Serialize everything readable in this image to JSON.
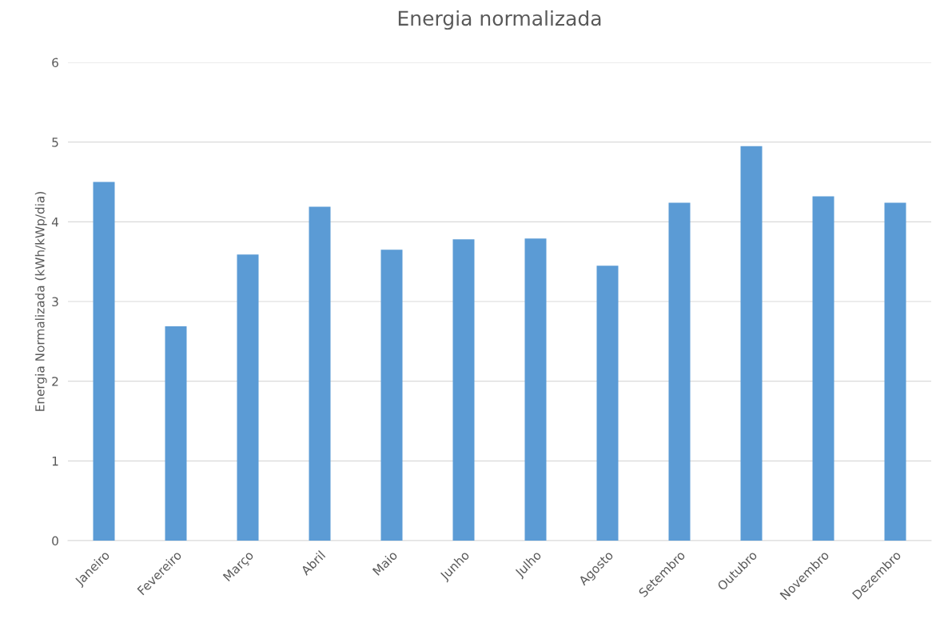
{
  "chart_data": {
    "type": "bar",
    "title": "Energia normalizada",
    "ylabel": "Energia Normalizada (kWh/kWp/dia)",
    "categories": [
      "Janeiro",
      "Fevereiro",
      "Março",
      "Abril",
      "Maio",
      "Junho",
      "Julho",
      "Agosto",
      "Setembro",
      "Outubro",
      "Novembro",
      "Dezembro"
    ],
    "values": [
      4.5,
      2.69,
      3.59,
      4.19,
      3.65,
      3.78,
      3.79,
      3.45,
      4.24,
      4.95,
      4.32,
      4.24
    ],
    "color": "#5b9bd5",
    "ylim": [
      0,
      6
    ],
    "yticks": [
      0,
      1,
      2,
      3,
      4,
      5,
      6
    ],
    "grid": "y"
  }
}
